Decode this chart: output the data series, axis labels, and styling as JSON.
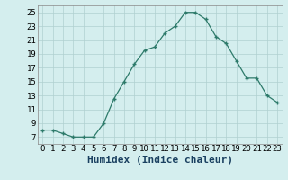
{
  "x": [
    0,
    1,
    2,
    3,
    4,
    5,
    6,
    7,
    8,
    9,
    10,
    11,
    12,
    13,
    14,
    15,
    16,
    17,
    18,
    19,
    20,
    21,
    22,
    23
  ],
  "y": [
    8.0,
    8.0,
    7.5,
    7.0,
    7.0,
    7.0,
    9.0,
    12.5,
    15.0,
    17.5,
    19.5,
    20.0,
    22.0,
    23.0,
    25.0,
    25.0,
    24.0,
    21.5,
    20.5,
    18.0,
    15.5,
    15.5,
    13.0,
    12.0
  ],
  "xlabel": "Humidex (Indice chaleur)",
  "yticks": [
    7,
    9,
    11,
    13,
    15,
    17,
    19,
    21,
    23,
    25
  ],
  "ytick_labels": [
    "7",
    "9",
    "11",
    "13",
    "15",
    "17",
    "19",
    "21",
    "23",
    "25"
  ],
  "xtick_labels": [
    "0",
    "1",
    "2",
    "3",
    "4",
    "5",
    "6",
    "7",
    "8",
    "9",
    "10",
    "11",
    "12",
    "13",
    "14",
    "15",
    "16",
    "17",
    "18",
    "19",
    "20",
    "21",
    "22",
    "23"
  ],
  "ylim": [
    6,
    26
  ],
  "xlim": [
    -0.5,
    23.5
  ],
  "line_color": "#2d7a6a",
  "marker_color": "#2d7a6a",
  "bg_color": "#d4eeee",
  "grid_color": "#b0d0d0",
  "xlabel_fontsize": 8,
  "tick_fontsize": 6.5
}
